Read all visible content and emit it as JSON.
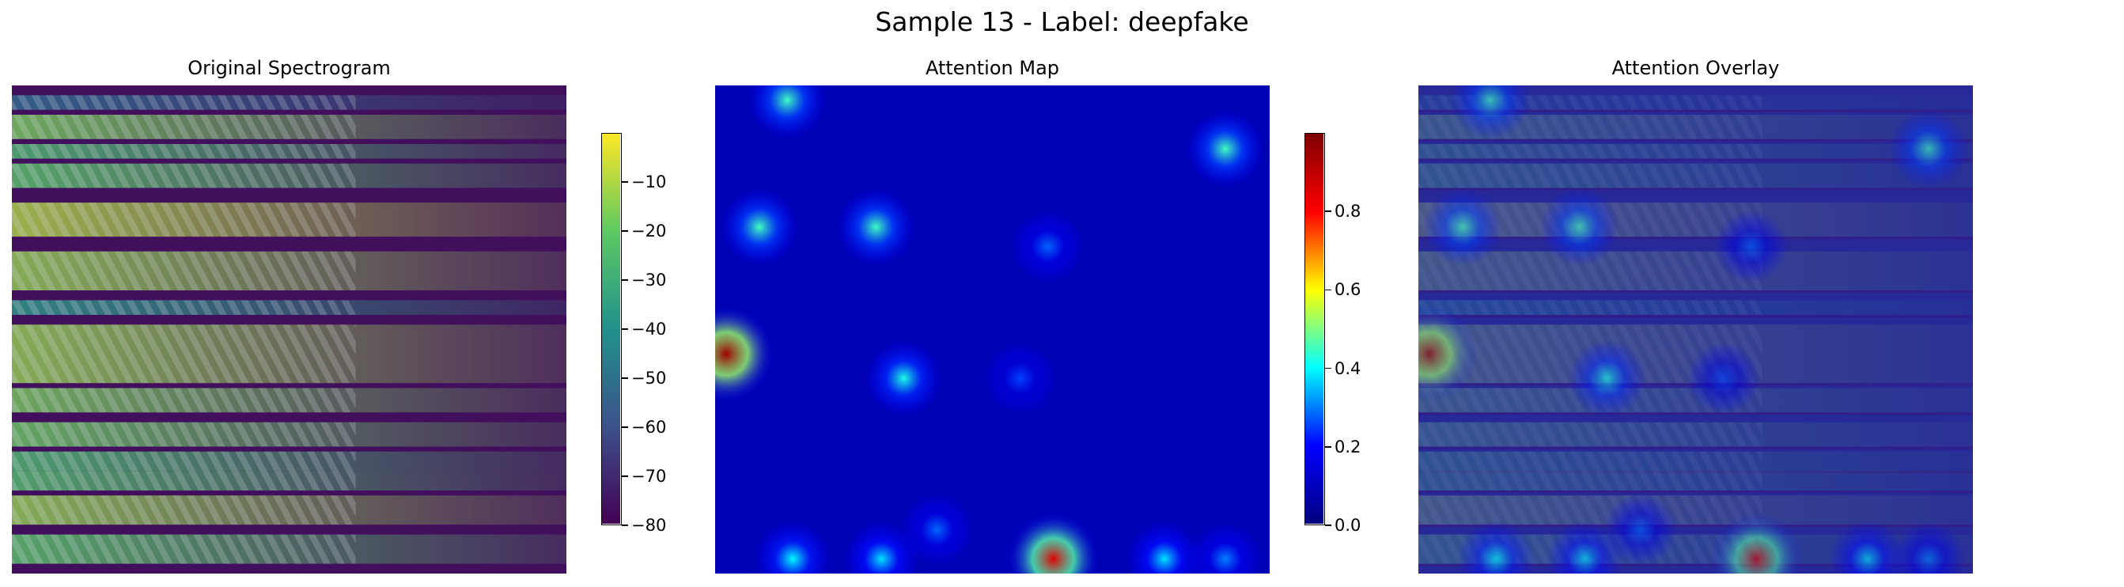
{
  "figure": {
    "suptitle": "Sample 13 - Label: deepfake"
  },
  "colors": {
    "viridis": [
      "#440154",
      "#3b528b",
      "#21918c",
      "#5ec962",
      "#fde725"
    ],
    "jet": [
      "#00007f",
      "#0000ff",
      "#00ffff",
      "#ffff00",
      "#ff0000",
      "#7f0000"
    ]
  },
  "chart_data": [
    {
      "type": "heatmap",
      "title": "Original Spectrogram",
      "colormap": "viridis",
      "axes": "off",
      "colorbar": {
        "range": [
          -80,
          0
        ],
        "ticks": [
          "−10",
          "−20",
          "−30",
          "−40",
          "−50",
          "−60",
          "−70",
          "−80"
        ],
        "tick_values": [
          -10,
          -20,
          -30,
          -40,
          -50,
          -60,
          -70,
          -80
        ]
      },
      "bands": [
        {
          "y": 0.02,
          "h": 0.03,
          "v": 0.35
        },
        {
          "y": 0.06,
          "h": 0.05,
          "v": 0.8
        },
        {
          "y": 0.12,
          "h": 0.03,
          "v": 0.7
        },
        {
          "y": 0.16,
          "h": 0.05,
          "v": 0.75
        },
        {
          "y": 0.24,
          "h": 0.07,
          "v": 0.9
        },
        {
          "y": 0.34,
          "h": 0.08,
          "v": 0.85
        },
        {
          "y": 0.44,
          "h": 0.03,
          "v": 0.55
        },
        {
          "y": 0.49,
          "h": 0.12,
          "v": 0.85
        },
        {
          "y": 0.62,
          "h": 0.05,
          "v": 0.8
        },
        {
          "y": 0.69,
          "h": 0.05,
          "v": 0.78
        },
        {
          "y": 0.75,
          "h": 0.04,
          "v": 0.7
        },
        {
          "y": 0.79,
          "h": 0.04,
          "v": 0.72
        },
        {
          "y": 0.84,
          "h": 0.06,
          "v": 0.85
        },
        {
          "y": 0.92,
          "h": 0.06,
          "v": 0.75
        }
      ]
    },
    {
      "type": "heatmap",
      "title": "Attention Map",
      "colormap": "jet",
      "axes": "off",
      "colorbar": {
        "range": [
          0,
          1
        ],
        "ticks": [
          "0.8",
          "0.6",
          "0.4",
          "0.2",
          "0.0"
        ],
        "tick_values": [
          0.8,
          0.6,
          0.4,
          0.2,
          0.0
        ]
      },
      "hotspots": [
        {
          "x": 0.13,
          "y": 0.03,
          "v": 0.45
        },
        {
          "x": 0.92,
          "y": 0.13,
          "v": 0.45
        },
        {
          "x": 0.08,
          "y": 0.29,
          "v": 0.45
        },
        {
          "x": 0.29,
          "y": 0.29,
          "v": 0.45
        },
        {
          "x": 0.6,
          "y": 0.33,
          "v": 0.28
        },
        {
          "x": 0.02,
          "y": 0.55,
          "v": 0.95
        },
        {
          "x": 0.34,
          "y": 0.6,
          "v": 0.42
        },
        {
          "x": 0.55,
          "y": 0.6,
          "v": 0.25
        },
        {
          "x": 0.4,
          "y": 0.91,
          "v": 0.28
        },
        {
          "x": 0.14,
          "y": 0.97,
          "v": 0.4
        },
        {
          "x": 0.3,
          "y": 0.97,
          "v": 0.38
        },
        {
          "x": 0.61,
          "y": 0.97,
          "v": 0.85
        },
        {
          "x": 0.81,
          "y": 0.97,
          "v": 0.38
        },
        {
          "x": 0.92,
          "y": 0.97,
          "v": 0.3
        }
      ]
    },
    {
      "type": "heatmap",
      "title": "Attention Overlay",
      "colormap": "jet over viridis",
      "axes": "off"
    }
  ]
}
